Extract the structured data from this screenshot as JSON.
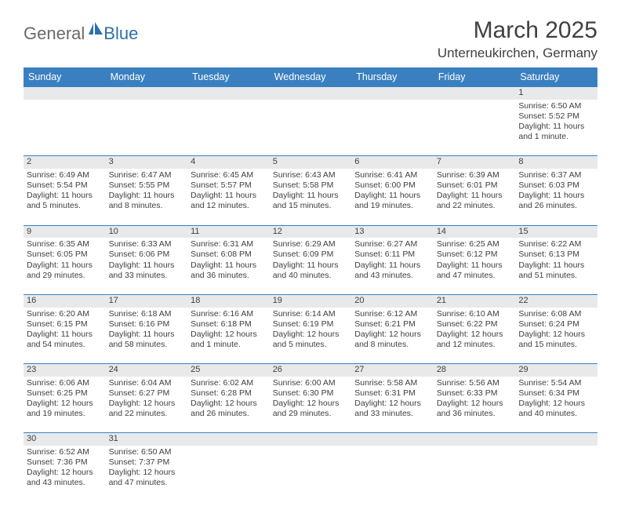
{
  "logo": {
    "general": "General",
    "blue": "Blue",
    "sail_color": "#2f6fa8",
    "general_color": "#6a6a6a"
  },
  "title": {
    "month": "March 2025",
    "location": "Unterneukirchen, Germany"
  },
  "columns": [
    "Sunday",
    "Monday",
    "Tuesday",
    "Wednesday",
    "Thursday",
    "Friday",
    "Saturday"
  ],
  "header_bg": "#3a80c1",
  "header_fg": "#ffffff",
  "daynum_bg": "#e7e9eb",
  "border_color": "#3a80c1",
  "text_color": "#404040",
  "weeks": [
    {
      "nums": [
        "",
        "",
        "",
        "",
        "",
        "",
        "1"
      ],
      "cells": [
        "",
        "",
        "",
        "",
        "",
        "",
        "Sunrise: 6:50 AM\nSunset: 5:52 PM\nDaylight: 11 hours and 1 minute."
      ]
    },
    {
      "nums": [
        "2",
        "3",
        "4",
        "5",
        "6",
        "7",
        "8"
      ],
      "cells": [
        "Sunrise: 6:49 AM\nSunset: 5:54 PM\nDaylight: 11 hours and 5 minutes.",
        "Sunrise: 6:47 AM\nSunset: 5:55 PM\nDaylight: 11 hours and 8 minutes.",
        "Sunrise: 6:45 AM\nSunset: 5:57 PM\nDaylight: 11 hours and 12 minutes.",
        "Sunrise: 6:43 AM\nSunset: 5:58 PM\nDaylight: 11 hours and 15 minutes.",
        "Sunrise: 6:41 AM\nSunset: 6:00 PM\nDaylight: 11 hours and 19 minutes.",
        "Sunrise: 6:39 AM\nSunset: 6:01 PM\nDaylight: 11 hours and 22 minutes.",
        "Sunrise: 6:37 AM\nSunset: 6:03 PM\nDaylight: 11 hours and 26 minutes."
      ]
    },
    {
      "nums": [
        "9",
        "10",
        "11",
        "12",
        "13",
        "14",
        "15"
      ],
      "cells": [
        "Sunrise: 6:35 AM\nSunset: 6:05 PM\nDaylight: 11 hours and 29 minutes.",
        "Sunrise: 6:33 AM\nSunset: 6:06 PM\nDaylight: 11 hours and 33 minutes.",
        "Sunrise: 6:31 AM\nSunset: 6:08 PM\nDaylight: 11 hours and 36 minutes.",
        "Sunrise: 6:29 AM\nSunset: 6:09 PM\nDaylight: 11 hours and 40 minutes.",
        "Sunrise: 6:27 AM\nSunset: 6:11 PM\nDaylight: 11 hours and 43 minutes.",
        "Sunrise: 6:25 AM\nSunset: 6:12 PM\nDaylight: 11 hours and 47 minutes.",
        "Sunrise: 6:22 AM\nSunset: 6:13 PM\nDaylight: 11 hours and 51 minutes."
      ]
    },
    {
      "nums": [
        "16",
        "17",
        "18",
        "19",
        "20",
        "21",
        "22"
      ],
      "cells": [
        "Sunrise: 6:20 AM\nSunset: 6:15 PM\nDaylight: 11 hours and 54 minutes.",
        "Sunrise: 6:18 AM\nSunset: 6:16 PM\nDaylight: 11 hours and 58 minutes.",
        "Sunrise: 6:16 AM\nSunset: 6:18 PM\nDaylight: 12 hours and 1 minute.",
        "Sunrise: 6:14 AM\nSunset: 6:19 PM\nDaylight: 12 hours and 5 minutes.",
        "Sunrise: 6:12 AM\nSunset: 6:21 PM\nDaylight: 12 hours and 8 minutes.",
        "Sunrise: 6:10 AM\nSunset: 6:22 PM\nDaylight: 12 hours and 12 minutes.",
        "Sunrise: 6:08 AM\nSunset: 6:24 PM\nDaylight: 12 hours and 15 minutes."
      ]
    },
    {
      "nums": [
        "23",
        "24",
        "25",
        "26",
        "27",
        "28",
        "29"
      ],
      "cells": [
        "Sunrise: 6:06 AM\nSunset: 6:25 PM\nDaylight: 12 hours and 19 minutes.",
        "Sunrise: 6:04 AM\nSunset: 6:27 PM\nDaylight: 12 hours and 22 minutes.",
        "Sunrise: 6:02 AM\nSunset: 6:28 PM\nDaylight: 12 hours and 26 minutes.",
        "Sunrise: 6:00 AM\nSunset: 6:30 PM\nDaylight: 12 hours and 29 minutes.",
        "Sunrise: 5:58 AM\nSunset: 6:31 PM\nDaylight: 12 hours and 33 minutes.",
        "Sunrise: 5:56 AM\nSunset: 6:33 PM\nDaylight: 12 hours and 36 minutes.",
        "Sunrise: 5:54 AM\nSunset: 6:34 PM\nDaylight: 12 hours and 40 minutes."
      ]
    },
    {
      "nums": [
        "30",
        "31",
        "",
        "",
        "",
        "",
        ""
      ],
      "cells": [
        "Sunrise: 6:52 AM\nSunset: 7:36 PM\nDaylight: 12 hours and 43 minutes.",
        "Sunrise: 6:50 AM\nSunset: 7:37 PM\nDaylight: 12 hours and 47 minutes.",
        "",
        "",
        "",
        "",
        ""
      ]
    }
  ]
}
